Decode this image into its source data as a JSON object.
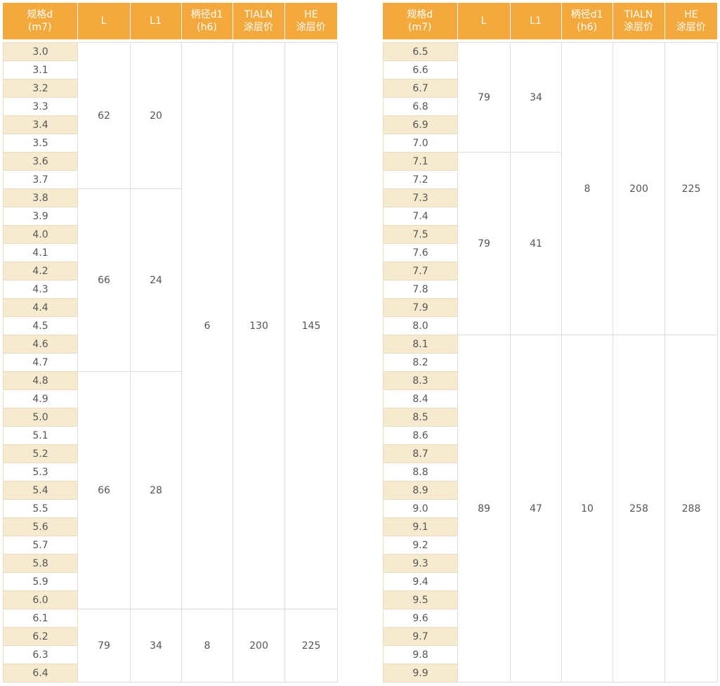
{
  "tables": [
    {
      "header": [
        [
          "规格d",
          "(m7)"
        ],
        [
          "L"
        ],
        [
          "L1"
        ],
        [
          "柄径d1",
          "(h6)"
        ],
        [
          "TIALN",
          "涂层价"
        ],
        [
          "HE",
          "涂层价"
        ]
      ],
      "price_groups": [
        {
          "d1": 6,
          "tialn": 130,
          "he": 145,
          "groups": [
            {
              "L": 62,
              "L1": 20,
              "sizes": [
                "3.0",
                "3.1",
                "3.2",
                "3.3",
                "3.4",
                "3.5",
                "3.6",
                "3.7"
              ]
            },
            {
              "L": 66,
              "L1": 24,
              "sizes": [
                "3.8",
                "3.9",
                "4.0",
                "4.1",
                "4.2",
                "4.3",
                "4.4",
                "4.5",
                "4.6",
                "4.7"
              ]
            },
            {
              "L": 66,
              "L1": 28,
              "sizes": [
                "4.8",
                "4.9",
                "5.0",
                "5.1",
                "5.2",
                "5.3",
                "5.4",
                "5.5",
                "5.6",
                "5.7",
                "5.8",
                "5.9",
                "6.0"
              ]
            }
          ]
        },
        {
          "d1": 8,
          "tialn": 200,
          "he": 225,
          "groups": [
            {
              "L": 79,
              "L1": 34,
              "sizes": [
                "6.1",
                "6.2",
                "6.3",
                "6.4"
              ]
            }
          ]
        }
      ]
    },
    {
      "header": [
        [
          "规格d",
          "(m7)"
        ],
        [
          "L"
        ],
        [
          "L1"
        ],
        [
          "柄径d1",
          "(h6)"
        ],
        [
          "TIALN",
          "涂层价"
        ],
        [
          "HE",
          "涂层价"
        ]
      ],
      "price_groups": [
        {
          "d1": 8,
          "tialn": 200,
          "he": 225,
          "groups": [
            {
              "L": 79,
              "L1": 34,
              "sizes": [
                "6.5",
                "6.6",
                "6.7",
                "6.8",
                "6.9",
                "7.0"
              ]
            },
            {
              "L": 79,
              "L1": 41,
              "sizes": [
                "7.1",
                "7.2",
                "7.3",
                "7.4",
                "7.5",
                "7.6",
                "7.7",
                "7.8",
                "7.9",
                "8.0"
              ]
            }
          ]
        },
        {
          "d1": 10,
          "tialn": 258,
          "he": 288,
          "groups": [
            {
              "L": 89,
              "L1": 47,
              "sizes": [
                "8.1",
                "8.2",
                "8.3",
                "8.4",
                "8.5",
                "8.6",
                "8.7",
                "8.8",
                "8.9",
                "9.0",
                "9.1",
                "9.2",
                "9.3",
                "9.4",
                "9.5",
                "9.6",
                "9.7",
                "9.8",
                "9.9"
              ]
            }
          ]
        }
      ]
    }
  ]
}
